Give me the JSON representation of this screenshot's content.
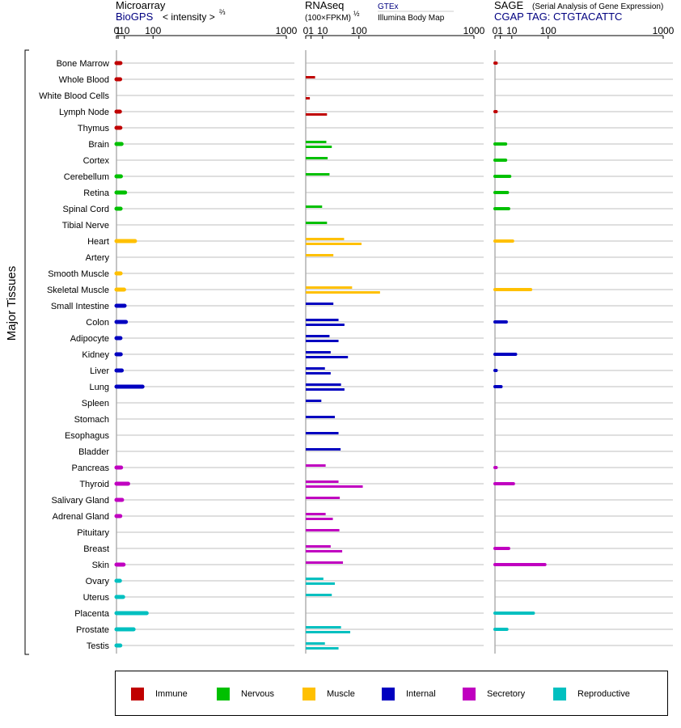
{
  "header": {
    "microarray": {
      "title": "Microarray",
      "source": "BioGPS",
      "unit": "< intensity >",
      "unit_exp": "⅔"
    },
    "rnaseq": {
      "title": "RNAseq",
      "unit": "(100×FPKM)",
      "unit_exp": "½",
      "source1": "GTEx",
      "source2": "Illumina Body Map"
    },
    "sage": {
      "title": "SAGE",
      "subtitle": "(Serial Analysis of Gene Expression)",
      "tag": "CGAP TAG: CTGTACATTC"
    }
  },
  "y_group_label": "Major Tissues",
  "colors": {
    "Immune": "#c00000",
    "Nervous": "#00c000",
    "Muscle": "#ffc000",
    "Internal": "#0000c0",
    "Secretory": "#c000c0",
    "Reproductive": "#00c0c0",
    "rna_source_label": "#000080"
  },
  "legend": [
    {
      "label": "Immune",
      "color": "#c00000"
    },
    {
      "label": "Nervous",
      "color": "#00c000"
    },
    {
      "label": "Muscle",
      "color": "#ffc000"
    },
    {
      "label": "Internal",
      "color": "#0000c0"
    },
    {
      "label": "Secretory",
      "color": "#c000c0"
    },
    {
      "label": "Reproductive",
      "color": "#00c0c0"
    }
  ],
  "chart_data": {
    "type": "bar",
    "axis_scale": "power (values transformed before plotting)",
    "axis_ticks": [
      "0",
      "1",
      "10",
      "100",
      "1000"
    ],
    "axis_tick_values": [
      0,
      1,
      10,
      100,
      1000
    ],
    "xlim": [
      0,
      1000
    ],
    "grid": true,
    "legend_position": "bottom",
    "tissues": [
      {
        "name": "Bone Marrow",
        "group": "Immune",
        "microarray": 3.6,
        "gtex": null,
        "ibm": null,
        "sage": 0.05
      },
      {
        "name": "Whole Blood",
        "group": "Immune",
        "microarray": 3.2,
        "gtex": 3.1,
        "ibm": null,
        "sage": null
      },
      {
        "name": "White Blood Cells",
        "group": "Immune",
        "microarray": null,
        "gtex": null,
        "ibm": 0.6,
        "sage": null
      },
      {
        "name": "Lymph Node",
        "group": "Immune",
        "microarray": 2.9,
        "gtex": null,
        "ibm": 16,
        "sage": 0.05
      },
      {
        "name": "Thymus",
        "group": "Immune",
        "microarray": 3.5,
        "gtex": null,
        "ibm": null,
        "sage": null
      },
      {
        "name": "Brain",
        "group": "Nervous",
        "microarray": 5.2,
        "gtex": 15,
        "ibm": 24,
        "sage": 4.0
      },
      {
        "name": "Cortex",
        "group": "Nervous",
        "microarray": null,
        "gtex": 17,
        "ibm": null,
        "sage": 4.0
      },
      {
        "name": "Cerebellum",
        "group": "Nervous",
        "microarray": 4.2,
        "gtex": 20,
        "ibm": null,
        "sage": 7.7
      },
      {
        "name": "Retina",
        "group": "Nervous",
        "microarray": 11.5,
        "gtex": null,
        "ibm": null,
        "sage": 5.5
      },
      {
        "name": "Spinal Cord",
        "group": "Nervous",
        "microarray": 3.8,
        "gtex": 9.5,
        "ibm": null,
        "sage": 6.6
      },
      {
        "name": "Tibial Nerve",
        "group": "Nervous",
        "microarray": null,
        "gtex": 16,
        "ibm": null,
        "sage": null
      },
      {
        "name": "Heart",
        "group": "Muscle",
        "microarray": 36,
        "gtex": 52,
        "ibm": 110,
        "sage": 11
      },
      {
        "name": "Artery",
        "group": "Muscle",
        "microarray": null,
        "gtex": 27,
        "ibm": null,
        "sage": null
      },
      {
        "name": "Smooth Muscle",
        "group": "Muscle",
        "microarray": 3.8,
        "gtex": null,
        "ibm": null,
        "sage": null
      },
      {
        "name": "Skeletal Muscle",
        "group": "Muscle",
        "microarray": 9.5,
        "gtex": 76,
        "ibm": 195,
        "sage": 45
      },
      {
        "name": "Small Intestine",
        "group": "Internal",
        "microarray": 10.5,
        "gtex": 27,
        "ibm": null,
        "sage": null
      },
      {
        "name": "Colon",
        "group": "Internal",
        "microarray": 13,
        "gtex": 38,
        "ibm": 53,
        "sage": 4.5
      },
      {
        "name": "Adipocyte",
        "group": "Internal",
        "microarray": 3.6,
        "gtex": 20,
        "ibm": 38,
        "sage": null
      },
      {
        "name": "Kidney",
        "group": "Internal",
        "microarray": 4.0,
        "gtex": 22,
        "ibm": 63,
        "sage": 15
      },
      {
        "name": "Liver",
        "group": "Internal",
        "microarray": 5.5,
        "gtex": 13,
        "ibm": 22,
        "sage": 0.05
      },
      {
        "name": "Lung",
        "group": "Internal",
        "microarray": 60,
        "gtex": 44,
        "ibm": 53,
        "sage": 1.3
      },
      {
        "name": "Spleen",
        "group": "Internal",
        "microarray": null,
        "gtex": 8.6,
        "ibm": null,
        "sage": null
      },
      {
        "name": "Stomach",
        "group": "Internal",
        "microarray": null,
        "gtex": 30,
        "ibm": null,
        "sage": null
      },
      {
        "name": "Esophagus",
        "group": "Internal",
        "microarray": null,
        "gtex": 38,
        "ibm": null,
        "sage": null
      },
      {
        "name": "Bladder",
        "group": "Internal",
        "microarray": null,
        "gtex": 43,
        "ibm": null,
        "sage": null
      },
      {
        "name": "Pancreas",
        "group": "Secretory",
        "microarray": 4.5,
        "gtex": 14,
        "ibm": null,
        "sage": 0.05
      },
      {
        "name": "Thyroid",
        "group": "Secretory",
        "microarray": 18,
        "gtex": 38,
        "ibm": 115,
        "sage": 12
      },
      {
        "name": "Salivary Gland",
        "group": "Secretory",
        "microarray": 6.0,
        "gtex": 41,
        "ibm": null,
        "sage": null
      },
      {
        "name": "Adrenal Gland",
        "group": "Secretory",
        "microarray": 3.4,
        "gtex": 14,
        "ibm": 26,
        "sage": null
      },
      {
        "name": "Pituitary",
        "group": "Secretory",
        "microarray": null,
        "gtex": 40,
        "ibm": null,
        "sage": null
      },
      {
        "name": "Breast",
        "group": "Secretory",
        "microarray": null,
        "gtex": 22,
        "ibm": 47,
        "sage": 6.6
      },
      {
        "name": "Skin",
        "group": "Secretory",
        "microarray": 8.6,
        "gtex": 49,
        "ibm": null,
        "sage": 88
      },
      {
        "name": "Ovary",
        "group": "Reproductive",
        "microarray": 2.9,
        "gtex": 11,
        "ibm": 30,
        "sage": null
      },
      {
        "name": "Uterus",
        "group": "Reproductive",
        "microarray": 7.8,
        "gtex": 24,
        "ibm": null,
        "sage": null
      },
      {
        "name": "Placenta",
        "group": "Reproductive",
        "microarray": 75,
        "gtex": null,
        "ibm": null,
        "sage": 52
      },
      {
        "name": "Prostate",
        "group": "Reproductive",
        "microarray": 32,
        "gtex": 44,
        "ibm": 70,
        "sage": 5.0
      },
      {
        "name": "Testis",
        "group": "Reproductive",
        "microarray": 3.4,
        "gtex": 13,
        "ibm": 38,
        "sage": null
      }
    ]
  }
}
